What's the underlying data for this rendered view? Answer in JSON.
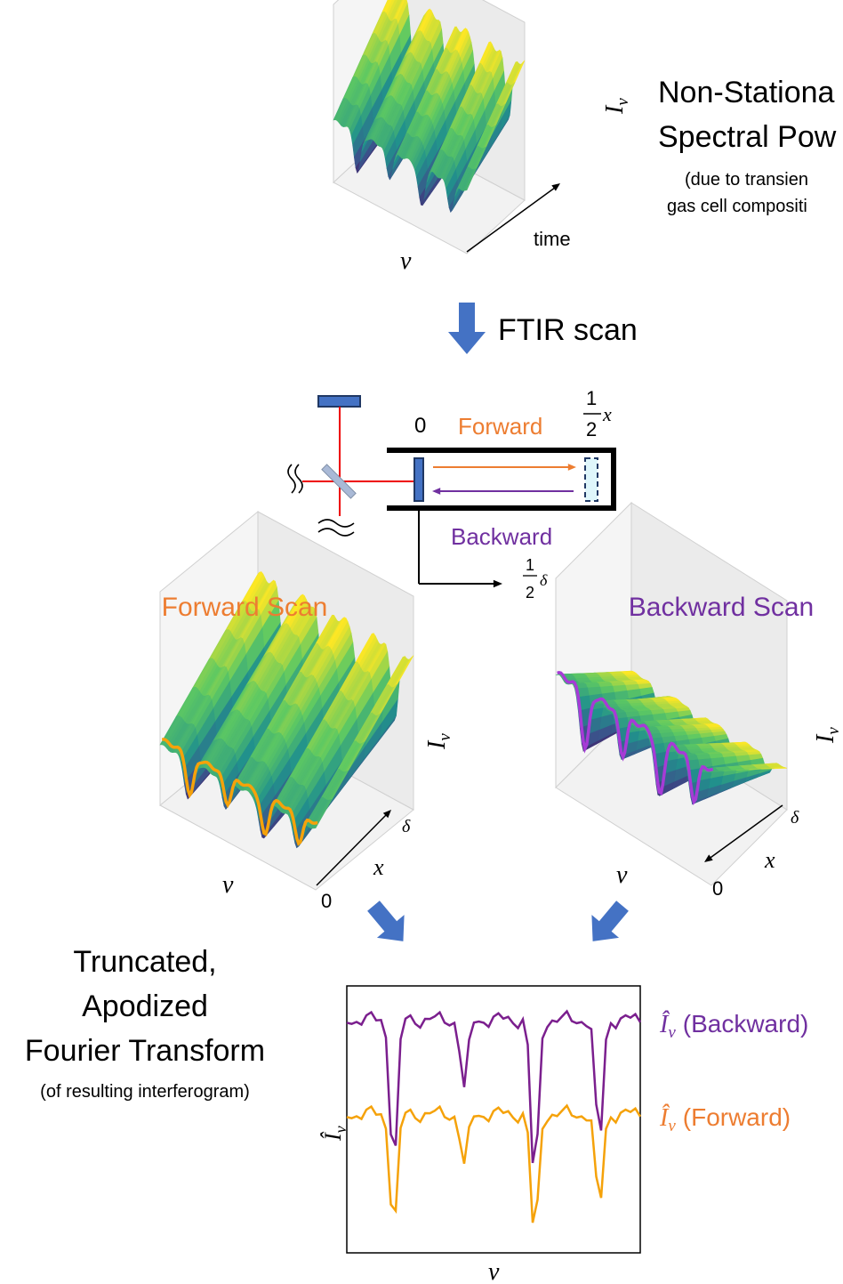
{
  "top": {
    "title_lines": [
      "Non-Stationa",
      "Spectral Pow"
    ],
    "note_lines": [
      "(due to transien",
      "gas cell compositi"
    ],
    "axis_y": "I",
    "axis_y_sub": "ν",
    "axis_x": "ν",
    "axis_depth": "time"
  },
  "arrow_label": "FTIR scan",
  "interferometer": {
    "origin": "0",
    "forward": "Forward",
    "backward": "Backward",
    "end_num": "1",
    "end_den": "2",
    "end_var": "x",
    "delay_num": "1",
    "delay_den": "2",
    "delay_var": "δ"
  },
  "forward_scan": {
    "title": "Forward Scan",
    "axis_y": "I",
    "axis_y_sub": "ν",
    "axis_x": "ν",
    "depth_end": "δ",
    "depth": "x",
    "depth_start": "0"
  },
  "backward_scan": {
    "title": "Backward Scan",
    "axis_y": "I",
    "axis_y_sub": "ν",
    "axis_x": "ν",
    "depth_end": "δ",
    "depth": "x",
    "depth_start": "0"
  },
  "transform": {
    "title_lines": [
      "Truncated,",
      "Apodized",
      "Fourier Transform"
    ],
    "note": "(of resulting interferogram)",
    "axis_y": "Î",
    "axis_y_sub": "ν",
    "axis_x": "ν",
    "legend": [
      {
        "symbol": "Î",
        "sub": "ν",
        "label": "(Backward)"
      },
      {
        "symbol": "Î",
        "sub": "ν",
        "label": "(Forward)"
      }
    ]
  }
}
